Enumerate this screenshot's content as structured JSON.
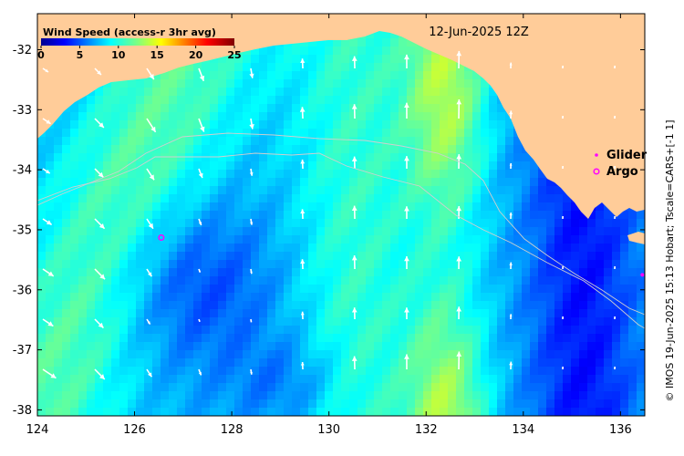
{
  "title": "12-Jun-2025 12Z",
  "colorbar": {
    "label": "Wind Speed (access-r 3hr avg)",
    "ticks": [
      "0",
      "5",
      "10",
      "15",
      "20",
      "25"
    ],
    "range": [
      0,
      25
    ]
  },
  "legend": [
    {
      "label": "Glider",
      "marker": "dot",
      "color": "#ff00ff"
    },
    {
      "label": "Argo",
      "marker": "ring",
      "color": "#ff00ff"
    }
  ],
  "credit": "© IMOS 19-Jun-2025 15:13 Hobart; Tscale=CARS+[-1 1]",
  "axes": {
    "x_ticks": [
      "124",
      "126",
      "128",
      "130",
      "132",
      "134",
      "136"
    ],
    "y_ticks": [
      "-32",
      "-33",
      "-34",
      "-35",
      "-36",
      "-37",
      "-38"
    ],
    "lon_range": [
      124,
      136.5
    ],
    "lat_range": [
      -38.1,
      -31.4
    ]
  },
  "colors": {
    "land": "#ffcc99",
    "ocean_low": "#00008f",
    "ocean_mid": "#0080ff",
    "ocean_high": "#33cc99",
    "arrow": "#ffffff",
    "marker": "#ff00ff"
  },
  "markers": {
    "argo": [
      {
        "lon": 126.55,
        "lat": -35.13
      }
    ],
    "glider": [
      {
        "lon": 136.45,
        "lat": -35.75
      }
    ]
  }
}
